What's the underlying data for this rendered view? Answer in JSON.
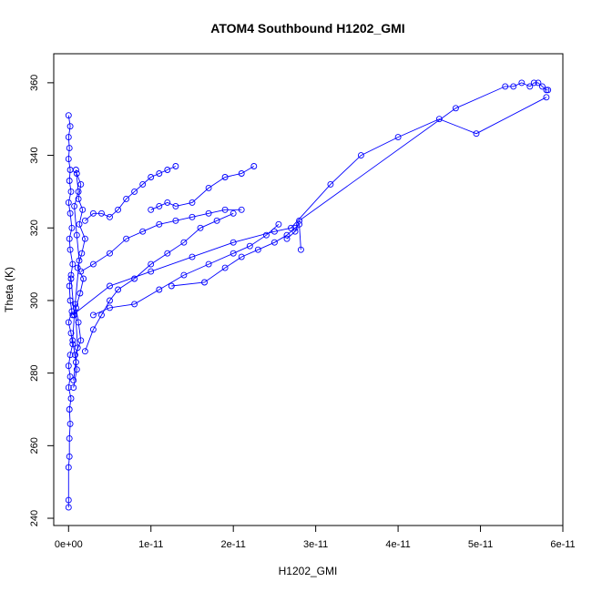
{
  "chart_data": {
    "type": "scatter",
    "title": "ATOM4 Southbound H1202_GMI",
    "xlabel": "H1202_GMI",
    "ylabel": "Theta (K)",
    "xlim": [
      -1.8e-12,
      6e-11
    ],
    "ylim": [
      238,
      368
    ],
    "x_ticks": [
      0,
      1e-11,
      2e-11,
      3e-11,
      4e-11,
      5e-11,
      6e-11
    ],
    "x_tick_labels": [
      "0e+00",
      "1e-11",
      "2e-11",
      "3e-11",
      "4e-11",
      "5e-11",
      "6e-11"
    ],
    "y_ticks": [
      240,
      260,
      280,
      300,
      320,
      340,
      360
    ],
    "y_tick_labels": [
      "240",
      "260",
      "280",
      "300",
      "320",
      "340",
      "360"
    ],
    "grid": false,
    "legend": "none",
    "marker": "open-circle",
    "connected": true,
    "colors": {
      "series": "#0000ff",
      "axis": "#000000"
    },
    "series": [
      {
        "values": [
          [
            0,
            243
          ],
          [
            0,
            245
          ],
          [
            0,
            254
          ],
          [
            1e-13,
            257
          ],
          [
            1e-13,
            262
          ],
          [
            2e-13,
            266
          ],
          [
            1e-13,
            270
          ],
          [
            3e-13,
            273
          ],
          [
            0,
            276
          ],
          [
            2e-13,
            279
          ],
          [
            0,
            282
          ],
          [
            2e-13,
            285
          ],
          [
            5e-13,
            288
          ],
          [
            3e-13,
            291
          ],
          [
            0,
            294
          ],
          [
            4e-13,
            297
          ],
          [
            2e-13,
            300
          ],
          [
            1e-13,
            304
          ],
          [
            3e-13,
            307
          ],
          [
            5e-13,
            310
          ],
          [
            2e-13,
            314
          ],
          [
            1e-13,
            317
          ],
          [
            4e-13,
            320
          ],
          [
            2e-13,
            324
          ],
          [
            0,
            327
          ],
          [
            3e-13,
            330
          ],
          [
            1e-13,
            333
          ],
          [
            2e-13,
            336
          ],
          [
            0,
            339
          ],
          [
            1e-13,
            342
          ],
          [
            0,
            345
          ],
          [
            2e-13,
            348
          ],
          [
            0,
            351
          ]
        ]
      },
      {
        "values": [
          [
            6e-13,
            276
          ],
          [
            1e-12,
            281
          ],
          [
            8e-13,
            285
          ],
          [
            1.5e-12,
            289
          ],
          [
            1.2e-12,
            294
          ],
          [
            9e-13,
            298
          ],
          [
            1.4e-12,
            302
          ],
          [
            1.8e-12,
            306
          ],
          [
            1.1e-12,
            309
          ],
          [
            1.6e-12,
            313
          ],
          [
            2e-12,
            317
          ],
          [
            1.3e-12,
            321
          ],
          [
            1.7e-12,
            325
          ],
          [
            1.2e-12,
            328
          ],
          [
            1.5e-12,
            332
          ],
          [
            1e-12,
            335
          ]
        ]
      },
      {
        "values": [
          [
            3e-13,
            306
          ],
          [
            7e-13,
            296
          ],
          [
            5e-13,
            289
          ],
          [
            9e-13,
            283
          ],
          [
            6e-13,
            278
          ],
          [
            1.1e-12,
            287
          ],
          [
            8e-13,
            299
          ],
          [
            1.3e-12,
            311
          ],
          [
            1e-12,
            318
          ],
          [
            7e-13,
            326
          ],
          [
            1.2e-12,
            330
          ],
          [
            9e-13,
            336
          ]
        ]
      },
      {
        "values": [
          [
            2e-12,
            322
          ],
          [
            3e-12,
            324
          ],
          [
            4e-12,
            324
          ],
          [
            5e-12,
            323
          ],
          [
            6e-12,
            325
          ],
          [
            7e-12,
            328
          ],
          [
            8e-12,
            330
          ],
          [
            9e-12,
            332
          ],
          [
            1e-11,
            334
          ],
          [
            1.1e-11,
            335
          ],
          [
            1.2e-11,
            336
          ],
          [
            1.3e-11,
            337
          ]
        ]
      },
      {
        "values": [
          [
            1e-11,
            325
          ],
          [
            1.1e-11,
            326
          ],
          [
            1.2e-11,
            327
          ],
          [
            1.3e-11,
            326
          ],
          [
            1.5e-11,
            327
          ],
          [
            1.7e-11,
            331
          ],
          [
            1.9e-11,
            334
          ],
          [
            2.1e-11,
            335
          ],
          [
            2.25e-11,
            337
          ]
        ]
      },
      {
        "values": [
          [
            2e-12,
            286
          ],
          [
            3e-12,
            292
          ],
          [
            4e-12,
            296
          ],
          [
            5e-12,
            300
          ],
          [
            6e-12,
            303
          ],
          [
            8e-12,
            306
          ],
          [
            1e-11,
            310
          ],
          [
            1.2e-11,
            313
          ],
          [
            1.4e-11,
            316
          ],
          [
            1.6e-11,
            320
          ],
          [
            1.8e-11,
            322
          ],
          [
            2e-11,
            324
          ]
        ]
      },
      {
        "values": [
          [
            3e-12,
            296
          ],
          [
            5e-12,
            298
          ],
          [
            8e-12,
            299
          ],
          [
            1.1e-11,
            303
          ],
          [
            1.4e-11,
            307
          ],
          [
            1.7e-11,
            310
          ],
          [
            2e-11,
            313
          ],
          [
            2.2e-11,
            315
          ],
          [
            2.4e-11,
            318
          ],
          [
            2.55e-11,
            321
          ]
        ]
      },
      {
        "values": [
          [
            1.5e-12,
            308
          ],
          [
            3e-12,
            310
          ],
          [
            5e-12,
            313
          ],
          [
            7e-12,
            317
          ],
          [
            9e-12,
            319
          ],
          [
            1.1e-11,
            321
          ],
          [
            1.3e-11,
            322
          ],
          [
            1.5e-11,
            323
          ],
          [
            1.7e-11,
            324
          ],
          [
            1.9e-11,
            325
          ],
          [
            2.1e-11,
            325
          ]
        ]
      },
      {
        "values": [
          [
            1.25e-11,
            304
          ],
          [
            1.65e-11,
            305
          ],
          [
            1.9e-11,
            309
          ],
          [
            2.1e-11,
            312
          ],
          [
            2.3e-11,
            314
          ],
          [
            2.5e-11,
            316
          ],
          [
            2.65e-11,
            318
          ],
          [
            2.75e-11,
            320
          ],
          [
            2.8e-11,
            321
          ],
          [
            2.82e-11,
            314
          ]
        ]
      },
      {
        "values": [
          [
            5e-13,
            296
          ],
          [
            5e-12,
            304
          ],
          [
            1e-11,
            308
          ],
          [
            1.5e-11,
            312
          ],
          [
            2e-11,
            316
          ],
          [
            2.5e-11,
            319
          ],
          [
            2.7e-11,
            320
          ],
          [
            3.18e-11,
            332
          ],
          [
            3.55e-11,
            340
          ],
          [
            4e-11,
            345
          ],
          [
            4.5e-11,
            350
          ],
          [
            4.95e-11,
            346
          ],
          [
            5.8e-11,
            356
          ]
        ]
      },
      {
        "values": [
          [
            2.65e-11,
            317
          ],
          [
            2.75e-11,
            319
          ],
          [
            2.8e-11,
            322
          ],
          [
            4.7e-11,
            353
          ],
          [
            5.3e-11,
            359
          ],
          [
            5.4e-11,
            359
          ],
          [
            5.5e-11,
            360
          ],
          [
            5.6e-11,
            359
          ],
          [
            5.65e-11,
            360
          ],
          [
            5.7e-11,
            360
          ],
          [
            5.75e-11,
            359
          ],
          [
            5.8e-11,
            358
          ],
          [
            5.82e-11,
            358
          ]
        ]
      }
    ]
  }
}
